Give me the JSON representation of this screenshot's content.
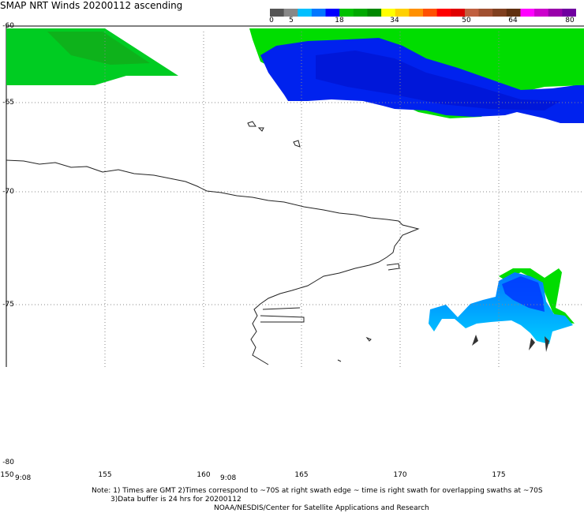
{
  "title": "SMAP NRT Winds 20200112 ascending",
  "colorbar": {
    "ticks": [
      "0",
      "5",
      "18",
      "34",
      "50",
      "64",
      "80"
    ],
    "segments": [
      {
        "color": "#555555"
      },
      {
        "color": "#888888"
      },
      {
        "color": "#00bfff"
      },
      {
        "color": "#0077ff"
      },
      {
        "color": "#0000ff"
      },
      {
        "color": "#00c000"
      },
      {
        "color": "#00a800"
      },
      {
        "color": "#008800"
      },
      {
        "color": "#ffff00"
      },
      {
        "color": "#ffd000"
      },
      {
        "color": "#ff9000"
      },
      {
        "color": "#ff5000"
      },
      {
        "color": "#ff0000"
      },
      {
        "color": "#e00000"
      },
      {
        "color": "#c06040"
      },
      {
        "color": "#a05030"
      },
      {
        "color": "#804020"
      },
      {
        "color": "#603010"
      },
      {
        "color": "#ff00ff"
      },
      {
        "color": "#cc00cc"
      },
      {
        "color": "#9900aa"
      },
      {
        "color": "#7000a0"
      }
    ]
  },
  "map": {
    "lat_labels": [
      "-60",
      "-65",
      "-70",
      "-75",
      "-80"
    ],
    "lon_labels": [
      "150",
      "155",
      "160",
      "165",
      "170",
      "175"
    ],
    "time_labels": [
      "9:08",
      "9:08"
    ]
  },
  "colors": {
    "green": "#00dd00",
    "blue": "#0033ff",
    "light_blue": "#00ccff",
    "coast": "#000000"
  },
  "notes": {
    "line1": "Note: 1) Times are GMT 2)Times correspond to ~70S at right swath edge ~ time is right swath for overlapping swaths at ~70S",
    "line2": "3)Data buffer is 24 hrs for 20200112",
    "line3": "NOAA/NESDIS/Center for Satellite Applications and Research"
  }
}
